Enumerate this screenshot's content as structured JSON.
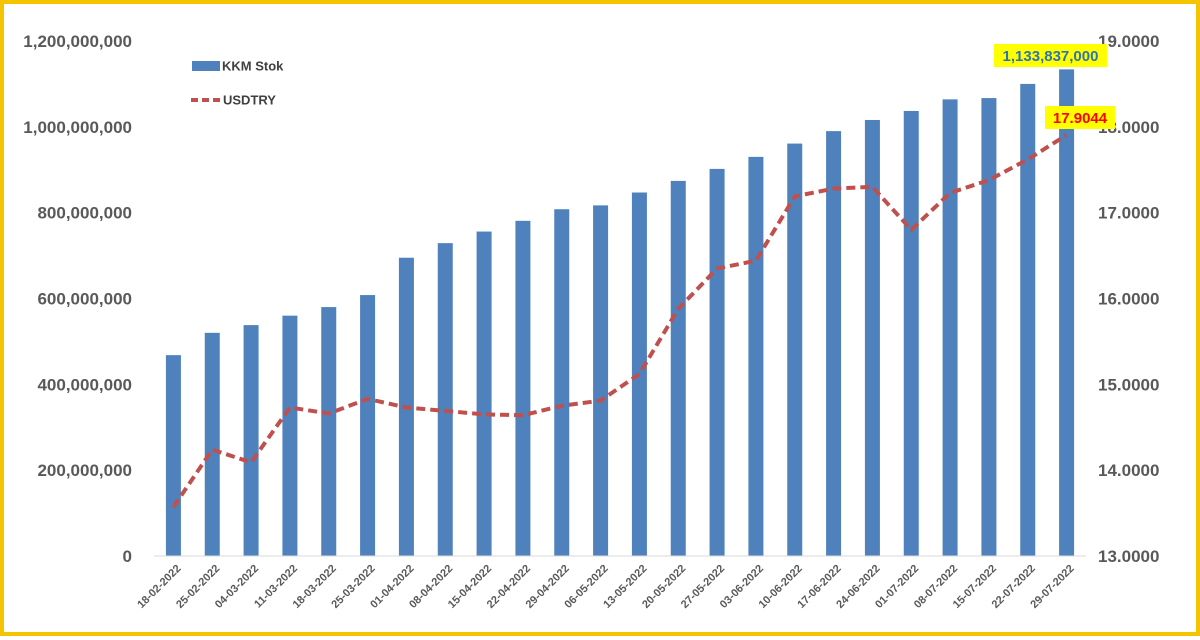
{
  "chart_data": {
    "type": "bar",
    "categories": [
      "18-02-2022",
      "25-02-2022",
      "04-03-2022",
      "11-03-2022",
      "18-03-2022",
      "25-03-2022",
      "01-04-2022",
      "08-04-2022",
      "15-04-2022",
      "22-04-2022",
      "29-04-2022",
      "06-05-2022",
      "13-05-2022",
      "20-05-2022",
      "27-05-2022",
      "03-06-2022",
      "10-06-2022",
      "17-06-2022",
      "24-06-2022",
      "01-07-2022",
      "08-07-2022",
      "15-07-2022",
      "22-07-2022",
      "29-07-2022"
    ],
    "series": [
      {
        "name": "KKM Stok",
        "kind": "bar",
        "axis": "left",
        "color": "#4f81bd",
        "values": [
          468000000,
          520000000,
          538000000,
          560000000,
          580000000,
          608000000,
          695000000,
          729000000,
          756000000,
          781000000,
          808000000,
          817000000,
          847000000,
          874000000,
          902000000,
          930000000,
          961000000,
          990000000,
          1016000000,
          1037000000,
          1064000000,
          1067000000,
          1100000000,
          1133837000
        ]
      },
      {
        "name": "USDTRY",
        "kind": "line",
        "axis": "right",
        "color": "#c0504d",
        "style": "dashed",
        "values": [
          13.57,
          14.24,
          14.09,
          14.73,
          14.66,
          14.83,
          14.73,
          14.69,
          14.65,
          14.64,
          14.75,
          14.81,
          15.12,
          15.88,
          16.35,
          16.44,
          17.19,
          17.28,
          17.3,
          16.8,
          17.23,
          17.38,
          17.62,
          17.9044
        ]
      }
    ],
    "yticks_left": [
      "0",
      "200,000,000",
      "400,000,000",
      "600,000,000",
      "800,000,000",
      "1,000,000,000",
      "1,200,000,000"
    ],
    "yticks_right": [
      "13.0000",
      "14.0000",
      "15.0000",
      "16.0000",
      "17.0000",
      "18.0000",
      "19.0000"
    ],
    "ylim_left": [
      0,
      1200000000
    ],
    "ylim_right": [
      13,
      19
    ],
    "annotations": {
      "bar_last_label": "1,133,837,000",
      "line_last_label": "17.9044",
      "bar_label_color": "#2e74b5",
      "line_label_color": "#ff0000",
      "highlight_color": "#ffff00"
    },
    "legend_position": "top-left",
    "grid": false
  },
  "frame": {
    "border_color": "#f5c400"
  }
}
